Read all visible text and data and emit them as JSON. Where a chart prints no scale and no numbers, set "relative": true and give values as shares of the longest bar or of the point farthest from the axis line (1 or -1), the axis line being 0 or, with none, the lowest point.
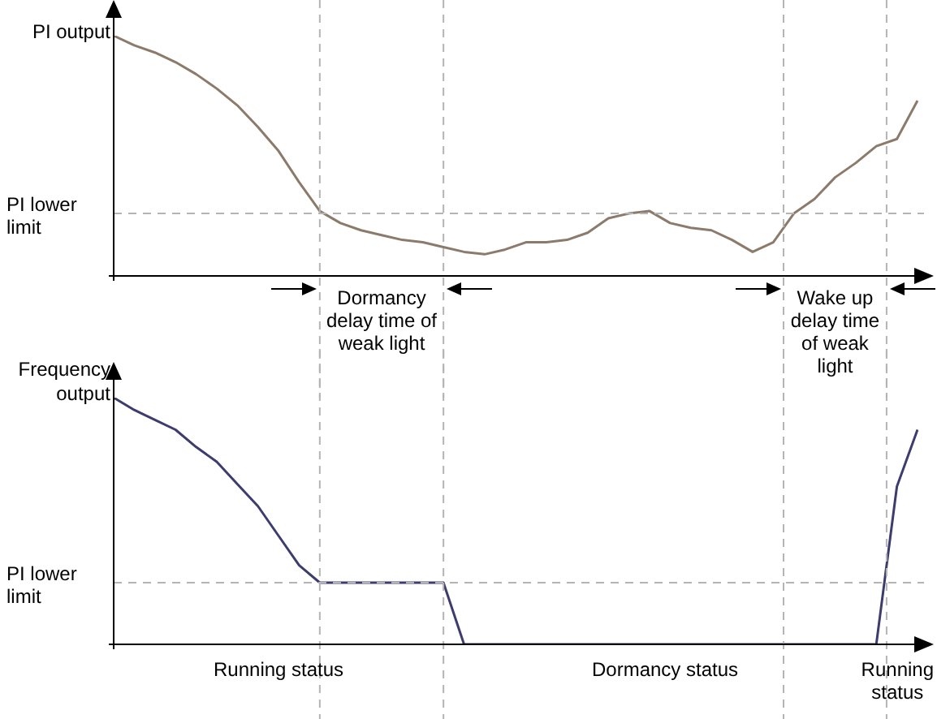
{
  "chart_data": [
    {
      "type": "line",
      "relative": true,
      "ylabel": "PI output",
      "legend": false,
      "marker": "none",
      "line_style": "solid",
      "categories": [
        null,
        null,
        null,
        null,
        null,
        null,
        null,
        null,
        null,
        null,
        null,
        null,
        null,
        null,
        null,
        null,
        null,
        null,
        null,
        null,
        null,
        null,
        null,
        null,
        null,
        null,
        null,
        null,
        null,
        null,
        null,
        null,
        null,
        null,
        null,
        null,
        null,
        null,
        null,
        null
      ],
      "series": [
        {
          "color": "#8c7b6b",
          "values": [
            1.0,
            0.96,
            0.93,
            0.89,
            0.84,
            0.78,
            0.71,
            0.62,
            0.52,
            0.39,
            0.27,
            0.22,
            0.19,
            0.17,
            0.15,
            0.14,
            0.12,
            0.1,
            0.09,
            0.11,
            0.14,
            0.14,
            0.15,
            0.18,
            0.24,
            0.26,
            0.27,
            0.22,
            0.2,
            0.19,
            0.15,
            0.1,
            0.14,
            0.26,
            0.32,
            0.41,
            0.47,
            0.54,
            0.57,
            0.73
          ]
        }
      ],
      "ref_lines": [
        {
          "axis": "y",
          "value": 0.26,
          "label": "PI lower limit",
          "color": "#b4b4b4",
          "line_style": "dashed"
        }
      ],
      "annotations": [
        "Dormancy delay time of weak light",
        "Wake up delay time of weak light"
      ]
    },
    {
      "type": "line",
      "relative": true,
      "ylabel": "Frequency output",
      "legend": false,
      "marker": "none",
      "line_style": "solid",
      "categories": [
        null,
        null,
        null,
        null,
        null,
        null,
        null,
        null,
        null,
        null,
        null,
        null,
        null,
        null,
        null,
        null,
        null,
        null,
        null,
        null,
        null,
        null,
        null,
        null,
        null,
        null,
        null,
        null,
        null,
        null,
        null,
        null,
        null,
        null,
        null,
        null,
        null,
        null,
        null,
        null
      ],
      "series": [
        {
          "color": "#3c3c6e",
          "values": [
            1.0,
            0.95,
            0.91,
            0.87,
            0.8,
            0.74,
            0.65,
            0.56,
            0.44,
            0.32,
            0.25,
            0.25,
            0.25,
            0.25,
            0.25,
            0.25,
            0.25,
            0,
            0,
            0,
            0,
            0,
            0,
            0,
            0,
            0,
            0,
            0,
            0,
            0,
            0,
            0,
            0,
            0,
            0,
            0,
            0,
            0,
            0.64,
            0.87
          ]
        }
      ],
      "ref_lines": [
        {
          "axis": "y",
          "value": 0.25,
          "label": "PI lower limit",
          "color": "#b4b4b4",
          "line_style": "dashed"
        }
      ],
      "annotations": [
        "Running status",
        "Dormancy status",
        "Running status"
      ]
    }
  ]
}
